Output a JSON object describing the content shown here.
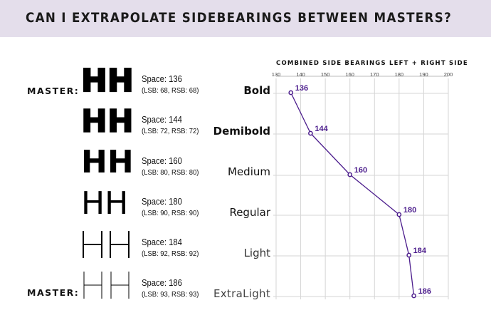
{
  "header": {
    "title": "CAN I EXTRAPOLATE SIDEBEARINGS BETWEEN MASTERS?"
  },
  "specimen": {
    "glyph_text": "HH",
    "master_label": "MASTER:",
    "rows": [
      {
        "space": "Space: 136",
        "detail": "(LSB: 68, RSB: 68)"
      },
      {
        "space": "Space: 144",
        "detail": "(LSB: 72, RSB: 72)"
      },
      {
        "space": "Space: 160",
        "detail": "(LSB: 80, RSB: 80)"
      },
      {
        "space": "Space: 180",
        "detail": "(LSB: 90, RSB: 90)"
      },
      {
        "space": "Space: 184",
        "detail": "(LSB: 92, RSB: 92)"
      },
      {
        "space": "Space: 186",
        "detail": "(LSB: 93, RSB: 93)"
      }
    ]
  },
  "chart_data": {
    "type": "line",
    "title": "COMBINED SIDE BEARINGS LEFT + RIGHT SIDE",
    "xlim": [
      130,
      200
    ],
    "x_ticks": [
      130,
      140,
      150,
      160,
      170,
      180,
      190,
      200
    ],
    "x_tick_labels": [
      "130",
      "140",
      "150",
      "160",
      "170",
      "180",
      "190",
      "200"
    ],
    "categories": [
      "Bold",
      "Demibold",
      "Medium",
      "Regular",
      "Light",
      "ExtraLight"
    ],
    "values": [
      136,
      144,
      160,
      180,
      184,
      186
    ],
    "data_labels": [
      "136",
      "144",
      "160",
      "180",
      "184",
      "186"
    ],
    "grid": true,
    "colors": {
      "line": "#4b1c8c",
      "label": "#4b1c8c",
      "grid": "#d6d6d6"
    }
  }
}
